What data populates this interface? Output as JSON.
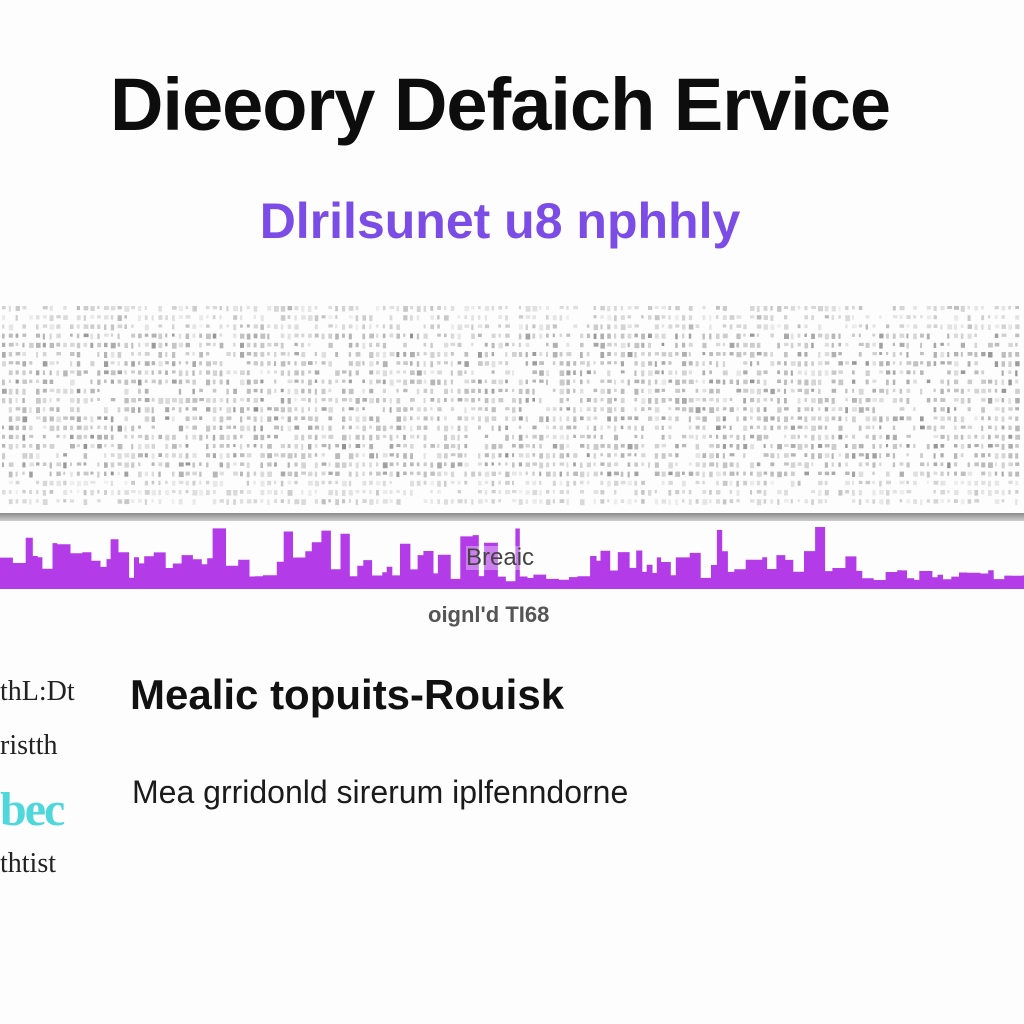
{
  "header": {
    "title": "Dieeory Defaich Ervice",
    "subtitle": "Dlrilsunet u8 nphhly"
  },
  "skyline": {
    "label": "Breaic",
    "caption": "oignl'd TI68"
  },
  "sidebar": {
    "lines": [
      "thL:Dt",
      "ristth",
      "bec",
      "thtist"
    ]
  },
  "content": {
    "heading": "Mealic topuits-Rouisk",
    "text": "Mea grridonld sirerum iplfenndorne"
  },
  "colors": {
    "title": "#0d0d0d",
    "subtitle": "#7b4de6",
    "skyline": "#b33be8",
    "accent": "#4fd8dc"
  }
}
